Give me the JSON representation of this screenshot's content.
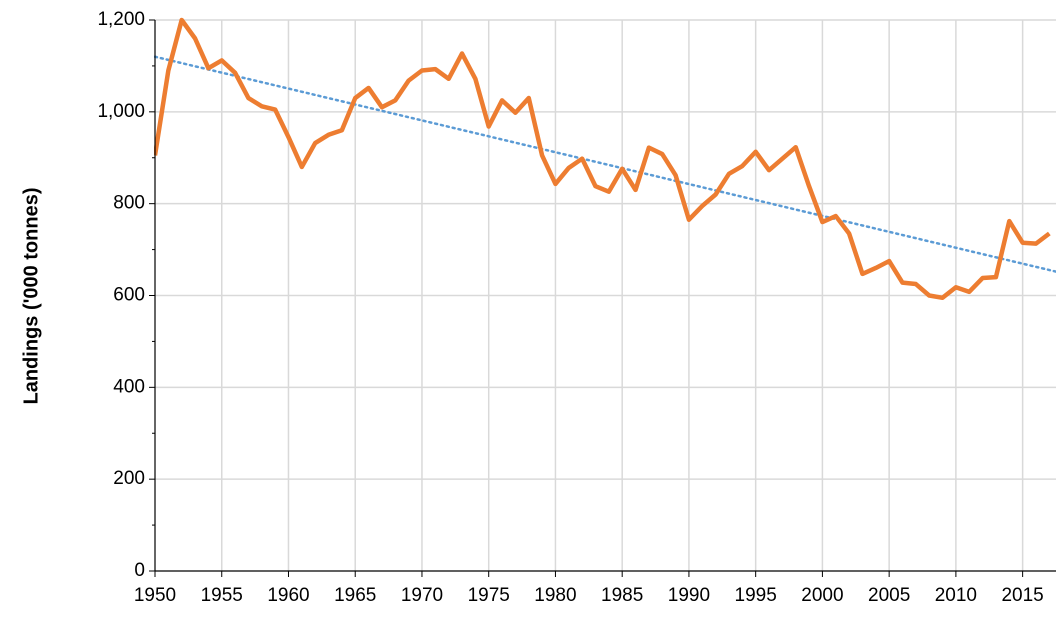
{
  "chart_data": {
    "type": "line",
    "y_axis_label": "Landings ('000 tonnes)",
    "x": [
      1950,
      1951,
      1952,
      1953,
      1954,
      1955,
      1956,
      1957,
      1958,
      1959,
      1960,
      1961,
      1962,
      1963,
      1964,
      1965,
      1966,
      1967,
      1968,
      1969,
      1970,
      1971,
      1972,
      1973,
      1974,
      1975,
      1976,
      1977,
      1978,
      1979,
      1980,
      1981,
      1982,
      1983,
      1984,
      1985,
      1986,
      1987,
      1988,
      1989,
      1990,
      1991,
      1992,
      1993,
      1994,
      1995,
      1996,
      1997,
      1998,
      1999,
      2000,
      2001,
      2002,
      2003,
      2004,
      2005,
      2006,
      2007,
      2008,
      2009,
      2010,
      2011,
      2012,
      2013,
      2014,
      2015,
      2016,
      2017
    ],
    "series": [
      {
        "color": "#ed7d31",
        "values": [
          905,
          1090,
          1200,
          1160,
          1095,
          1112,
          1085,
          1030,
          1012,
          1005,
          945,
          880,
          932,
          950,
          960,
          1030,
          1052,
          1010,
          1025,
          1068,
          1090,
          1093,
          1072,
          1127,
          1072,
          968,
          1025,
          998,
          1030,
          905,
          843,
          878,
          898,
          838,
          826,
          876,
          830,
          922,
          908,
          862,
          765,
          795,
          820,
          865,
          882,
          913,
          873,
          898,
          923,
          838,
          760,
          773,
          735,
          647,
          660,
          675,
          628,
          625,
          600,
          595,
          618,
          608,
          638,
          640,
          762,
          715,
          713,
          735
        ]
      }
    ],
    "trendline": {
      "color": "#5b9bd5",
      "x": [
        1950,
        2017.5
      ],
      "values": [
        1120,
        652
      ]
    },
    "xlim": [
      1950,
      2017.5
    ],
    "xticks": [
      1950,
      1955,
      1960,
      1965,
      1970,
      1975,
      1980,
      1985,
      1990,
      1995,
      2000,
      2005,
      2010,
      2015
    ],
    "ylim": [
      0,
      1200
    ],
    "yticks": [
      0,
      200,
      400,
      600,
      800,
      {
        "value": 1000,
        "label": "1,000"
      },
      {
        "value": 1200,
        "label": "1,200"
      }
    ],
    "grid": true
  }
}
